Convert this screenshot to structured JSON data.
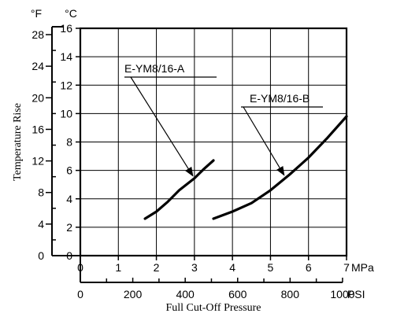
{
  "chart_data": {
    "type": "line",
    "xlabel": "Full Cut-Off Pressure",
    "ylabel": "Temperature Rise",
    "x_unit_primary": "MPa",
    "x_unit_secondary": "PSI",
    "y_unit_primary": "°C",
    "y_unit_secondary": "°F",
    "xlim": [
      0,
      7
    ],
    "ylim": [
      0,
      16
    ],
    "grid": true,
    "mpa_ticks": [
      "0",
      "1",
      "2",
      "3",
      "4",
      "5",
      "6",
      "7"
    ],
    "psi_ticks": [
      "0",
      "200",
      "400",
      "600",
      "800",
      "1000"
    ],
    "celsius_ticks": [
      "0",
      "2",
      "4",
      "6",
      "8",
      "10",
      "12",
      "14",
      "16"
    ],
    "fahrenheit_ticks": [
      "0",
      "4",
      "8",
      "12",
      "16",
      "20",
      "24",
      "28"
    ],
    "series": [
      {
        "name": "E-YM8/16-A",
        "x": [
          1.7,
          2.0,
          2.3,
          2.6,
          3.0,
          3.25,
          3.5
        ],
        "y": [
          2.6,
          3.1,
          3.8,
          4.6,
          5.45,
          6.1,
          6.7
        ]
      },
      {
        "name": "E-YM8/16-B",
        "x": [
          3.5,
          4.0,
          4.5,
          5.0,
          5.5,
          6.0,
          6.5,
          7.0
        ],
        "y": [
          2.6,
          3.1,
          3.7,
          4.6,
          5.7,
          6.9,
          8.3,
          9.8
        ]
      }
    ]
  }
}
